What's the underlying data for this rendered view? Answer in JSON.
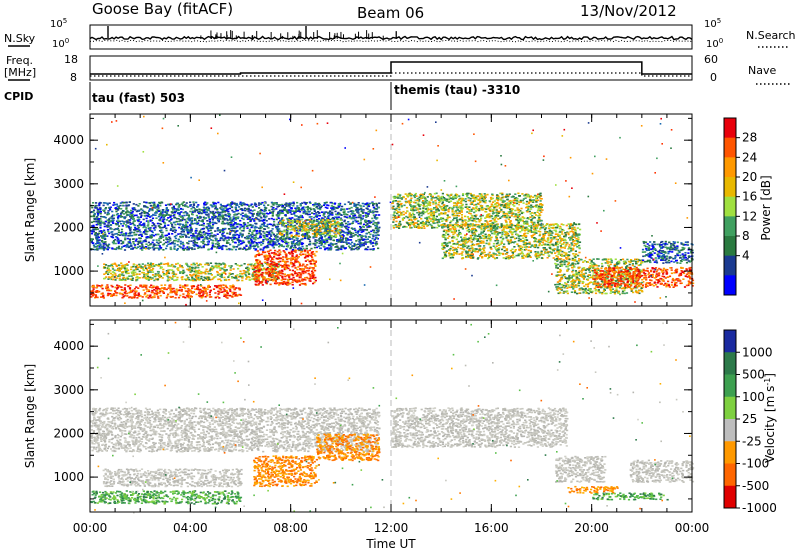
{
  "header": {
    "site": "Goose Bay (fitACF)",
    "beam": "Beam 06",
    "date": "13/Nov/2012"
  },
  "top_panels": {
    "nsky": {
      "label": "N.Sky",
      "yticks": [
        "10^5",
        "10^0"
      ],
      "right_label": "N.Search",
      "right_yticks": [
        "10^5",
        "10^0"
      ]
    },
    "freq": {
      "label_line1": "Freq.",
      "label_line2": "[MHz]",
      "yticks": [
        "18",
        "8"
      ],
      "right_label": "Nave",
      "right_yticks": [
        "60",
        "0"
      ]
    },
    "cpid": {
      "label": "CPID",
      "modes": [
        {
          "name": "tau (fast) 503",
          "start": "00:00"
        },
        {
          "name": "themis (tau) -3310",
          "start": "12:00"
        }
      ]
    }
  },
  "colorbars": {
    "power": {
      "label": "Power [dB]",
      "ticks": [
        "28",
        "24",
        "20",
        "16",
        "12",
        "8",
        "4"
      ],
      "colors": [
        "#e8000b",
        "#ff5500",
        "#ff9900",
        "#e8b800",
        "#a0e040",
        "#40a060",
        "#2a7a40",
        "#1a3a90",
        "#0000ff"
      ]
    },
    "velocity": {
      "label": "Velocity [m s^-1]",
      "ticks": [
        "1000",
        "500",
        "100",
        "25",
        "-25",
        "-100",
        "-500",
        "-1000"
      ],
      "colors": [
        "#1a2aa0",
        "#2d7a4a",
        "#3da050",
        "#7ed040",
        "#bebebe",
        "#ff9900",
        "#ff6600",
        "#e00000"
      ]
    }
  },
  "chart_data": [
    {
      "type": "heatmap",
      "title": "Power",
      "ylabel": "Slant Range [km]",
      "xlabel": "",
      "x_ticks": [
        "00:00",
        "04:00",
        "08:00",
        "12:00",
        "16:00",
        "20:00",
        "00:00"
      ],
      "y_ticks": [
        "1000",
        "2000",
        "3000",
        "4000"
      ],
      "xlim_hours": [
        0,
        24
      ],
      "ylim_km": [
        200,
        4600
      ],
      "bands": [
        {
          "t0": 0.0,
          "t1": 6.0,
          "r0": 400,
          "r1": 700,
          "level": "high"
        },
        {
          "t0": 0.5,
          "t1": 7.5,
          "r0": 800,
          "r1": 1200,
          "level": "mid"
        },
        {
          "t0": 6.5,
          "t1": 9.0,
          "r0": 700,
          "r1": 1500,
          "level": "high"
        },
        {
          "t0": 0.0,
          "t1": 11.5,
          "r0": 1500,
          "r1": 2600,
          "level": "low"
        },
        {
          "t0": 7.5,
          "t1": 10.0,
          "r0": 1800,
          "r1": 2200,
          "level": "mid"
        },
        {
          "t0": 12.0,
          "t1": 18.0,
          "r0": 2000,
          "r1": 2800,
          "level": "mid"
        },
        {
          "t0": 14.0,
          "t1": 19.5,
          "r0": 1300,
          "r1": 2100,
          "level": "mid"
        },
        {
          "t0": 18.5,
          "t1": 22.0,
          "r0": 500,
          "r1": 1300,
          "level": "mid"
        },
        {
          "t0": 20.0,
          "t1": 24.0,
          "r0": 650,
          "r1": 1100,
          "level": "high"
        },
        {
          "t0": 22.0,
          "t1": 24.0,
          "r0": 1200,
          "r1": 1700,
          "level": "low"
        }
      ]
    },
    {
      "type": "heatmap",
      "title": "Velocity",
      "ylabel": "Slant Range [km]",
      "xlabel": "Time UT",
      "x_ticks": [
        "00:00",
        "04:00",
        "08:00",
        "12:00",
        "16:00",
        "20:00",
        "00:00"
      ],
      "y_ticks": [
        "1000",
        "2000",
        "3000",
        "4000"
      ],
      "xlim_hours": [
        0,
        24
      ],
      "ylim_km": [
        200,
        4600
      ],
      "bands": [
        {
          "t0": 0.0,
          "t1": 6.0,
          "r0": 400,
          "r1": 700,
          "level": "green"
        },
        {
          "t0": 0.5,
          "t1": 6.0,
          "r0": 800,
          "r1": 1200,
          "level": "gray"
        },
        {
          "t0": 6.5,
          "t1": 9.0,
          "r0": 800,
          "r1": 1500,
          "level": "orange"
        },
        {
          "t0": 0.0,
          "t1": 11.5,
          "r0": 1600,
          "r1": 2600,
          "level": "gray"
        },
        {
          "t0": 9.0,
          "t1": 11.5,
          "r0": 1400,
          "r1": 2000,
          "level": "orange"
        },
        {
          "t0": 12.0,
          "t1": 19.0,
          "r0": 1700,
          "r1": 2600,
          "level": "gray"
        },
        {
          "t0": 18.5,
          "t1": 20.5,
          "r0": 900,
          "r1": 1500,
          "level": "gray"
        },
        {
          "t0": 19.0,
          "t1": 21.0,
          "r0": 650,
          "r1": 800,
          "level": "orange"
        },
        {
          "t0": 20.0,
          "t1": 23.0,
          "r0": 500,
          "r1": 650,
          "level": "green"
        },
        {
          "t0": 21.5,
          "t1": 24.0,
          "r0": 900,
          "r1": 1400,
          "level": "gray"
        }
      ]
    }
  ]
}
